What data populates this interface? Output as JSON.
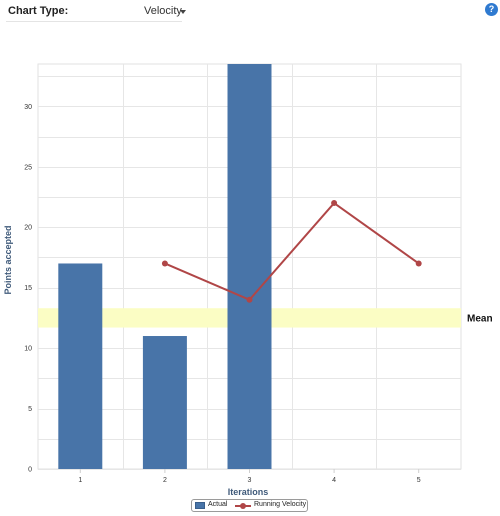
{
  "controls": {
    "chart_type_label": "Chart Type:",
    "chart_type_value": "Velocity",
    "help_symbol": "?"
  },
  "colors": {
    "bar": "#4874a8",
    "line": "#b04647",
    "mean_band": "#fbfdc4",
    "axis_title": "#3f5a7a",
    "help": "#2f7ad0"
  },
  "chart_data": {
    "type": "bar",
    "categories": [
      "1",
      "2",
      "3",
      "4",
      "5"
    ],
    "xlabel": "Iterations",
    "ylabel": "Points accepted",
    "ylim": [
      0,
      33.5
    ],
    "yticks": [
      0,
      5,
      10,
      15,
      20,
      25,
      30
    ],
    "grid": true,
    "series": [
      {
        "name": "Actual",
        "type": "bar",
        "values": [
          17,
          11,
          34,
          null,
          null
        ]
      },
      {
        "name": "Running Velocity",
        "type": "line",
        "values": [
          null,
          17,
          14,
          22,
          17
        ]
      }
    ],
    "mean_band": {
      "label": "Mean",
      "from": 11.7,
      "to": 13.3
    },
    "legend": {
      "position": "bottom-center",
      "entries": [
        "Actual",
        "Running Velocity"
      ]
    }
  }
}
